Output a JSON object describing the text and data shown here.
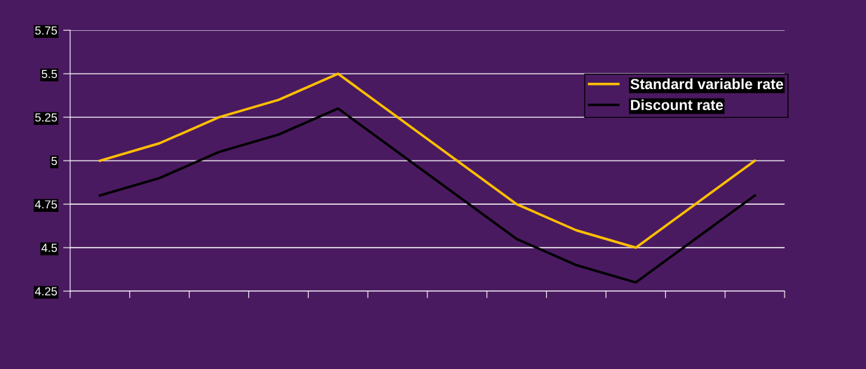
{
  "chart_data": {
    "type": "line",
    "categories": [
      null,
      null,
      null,
      null,
      null,
      null,
      null,
      null,
      null,
      null,
      null,
      null
    ],
    "series": [
      {
        "name": "Standard variable rate",
        "color": "#ffc000",
        "values": [
          5.0,
          5.1,
          5.25,
          5.35,
          5.5,
          5.25,
          5.0,
          4.75,
          4.6,
          4.5,
          4.75,
          5.0
        ]
      },
      {
        "name": "Discount rate",
        "color": "#000000",
        "values": [
          4.8,
          4.9,
          5.05,
          5.15,
          5.3,
          5.05,
          4.8,
          4.55,
          4.4,
          4.3,
          4.55,
          4.8
        ]
      }
    ],
    "ylim": [
      4.25,
      5.75
    ],
    "yticks": [
      {
        "value": 4.25,
        "label": "4.25"
      },
      {
        "value": 4.5,
        "label": "4.5"
      },
      {
        "value": 4.75,
        "label": "4.75"
      },
      5,
      {
        "value": 5.25,
        "label": "5.25"
      },
      {
        "value": 5.5,
        "label": "5.5"
      },
      {
        "value": 5.75,
        "label": "5.75"
      }
    ],
    "grid": "y",
    "legend": "top right",
    "marker": "none",
    "line_style": "solid"
  }
}
